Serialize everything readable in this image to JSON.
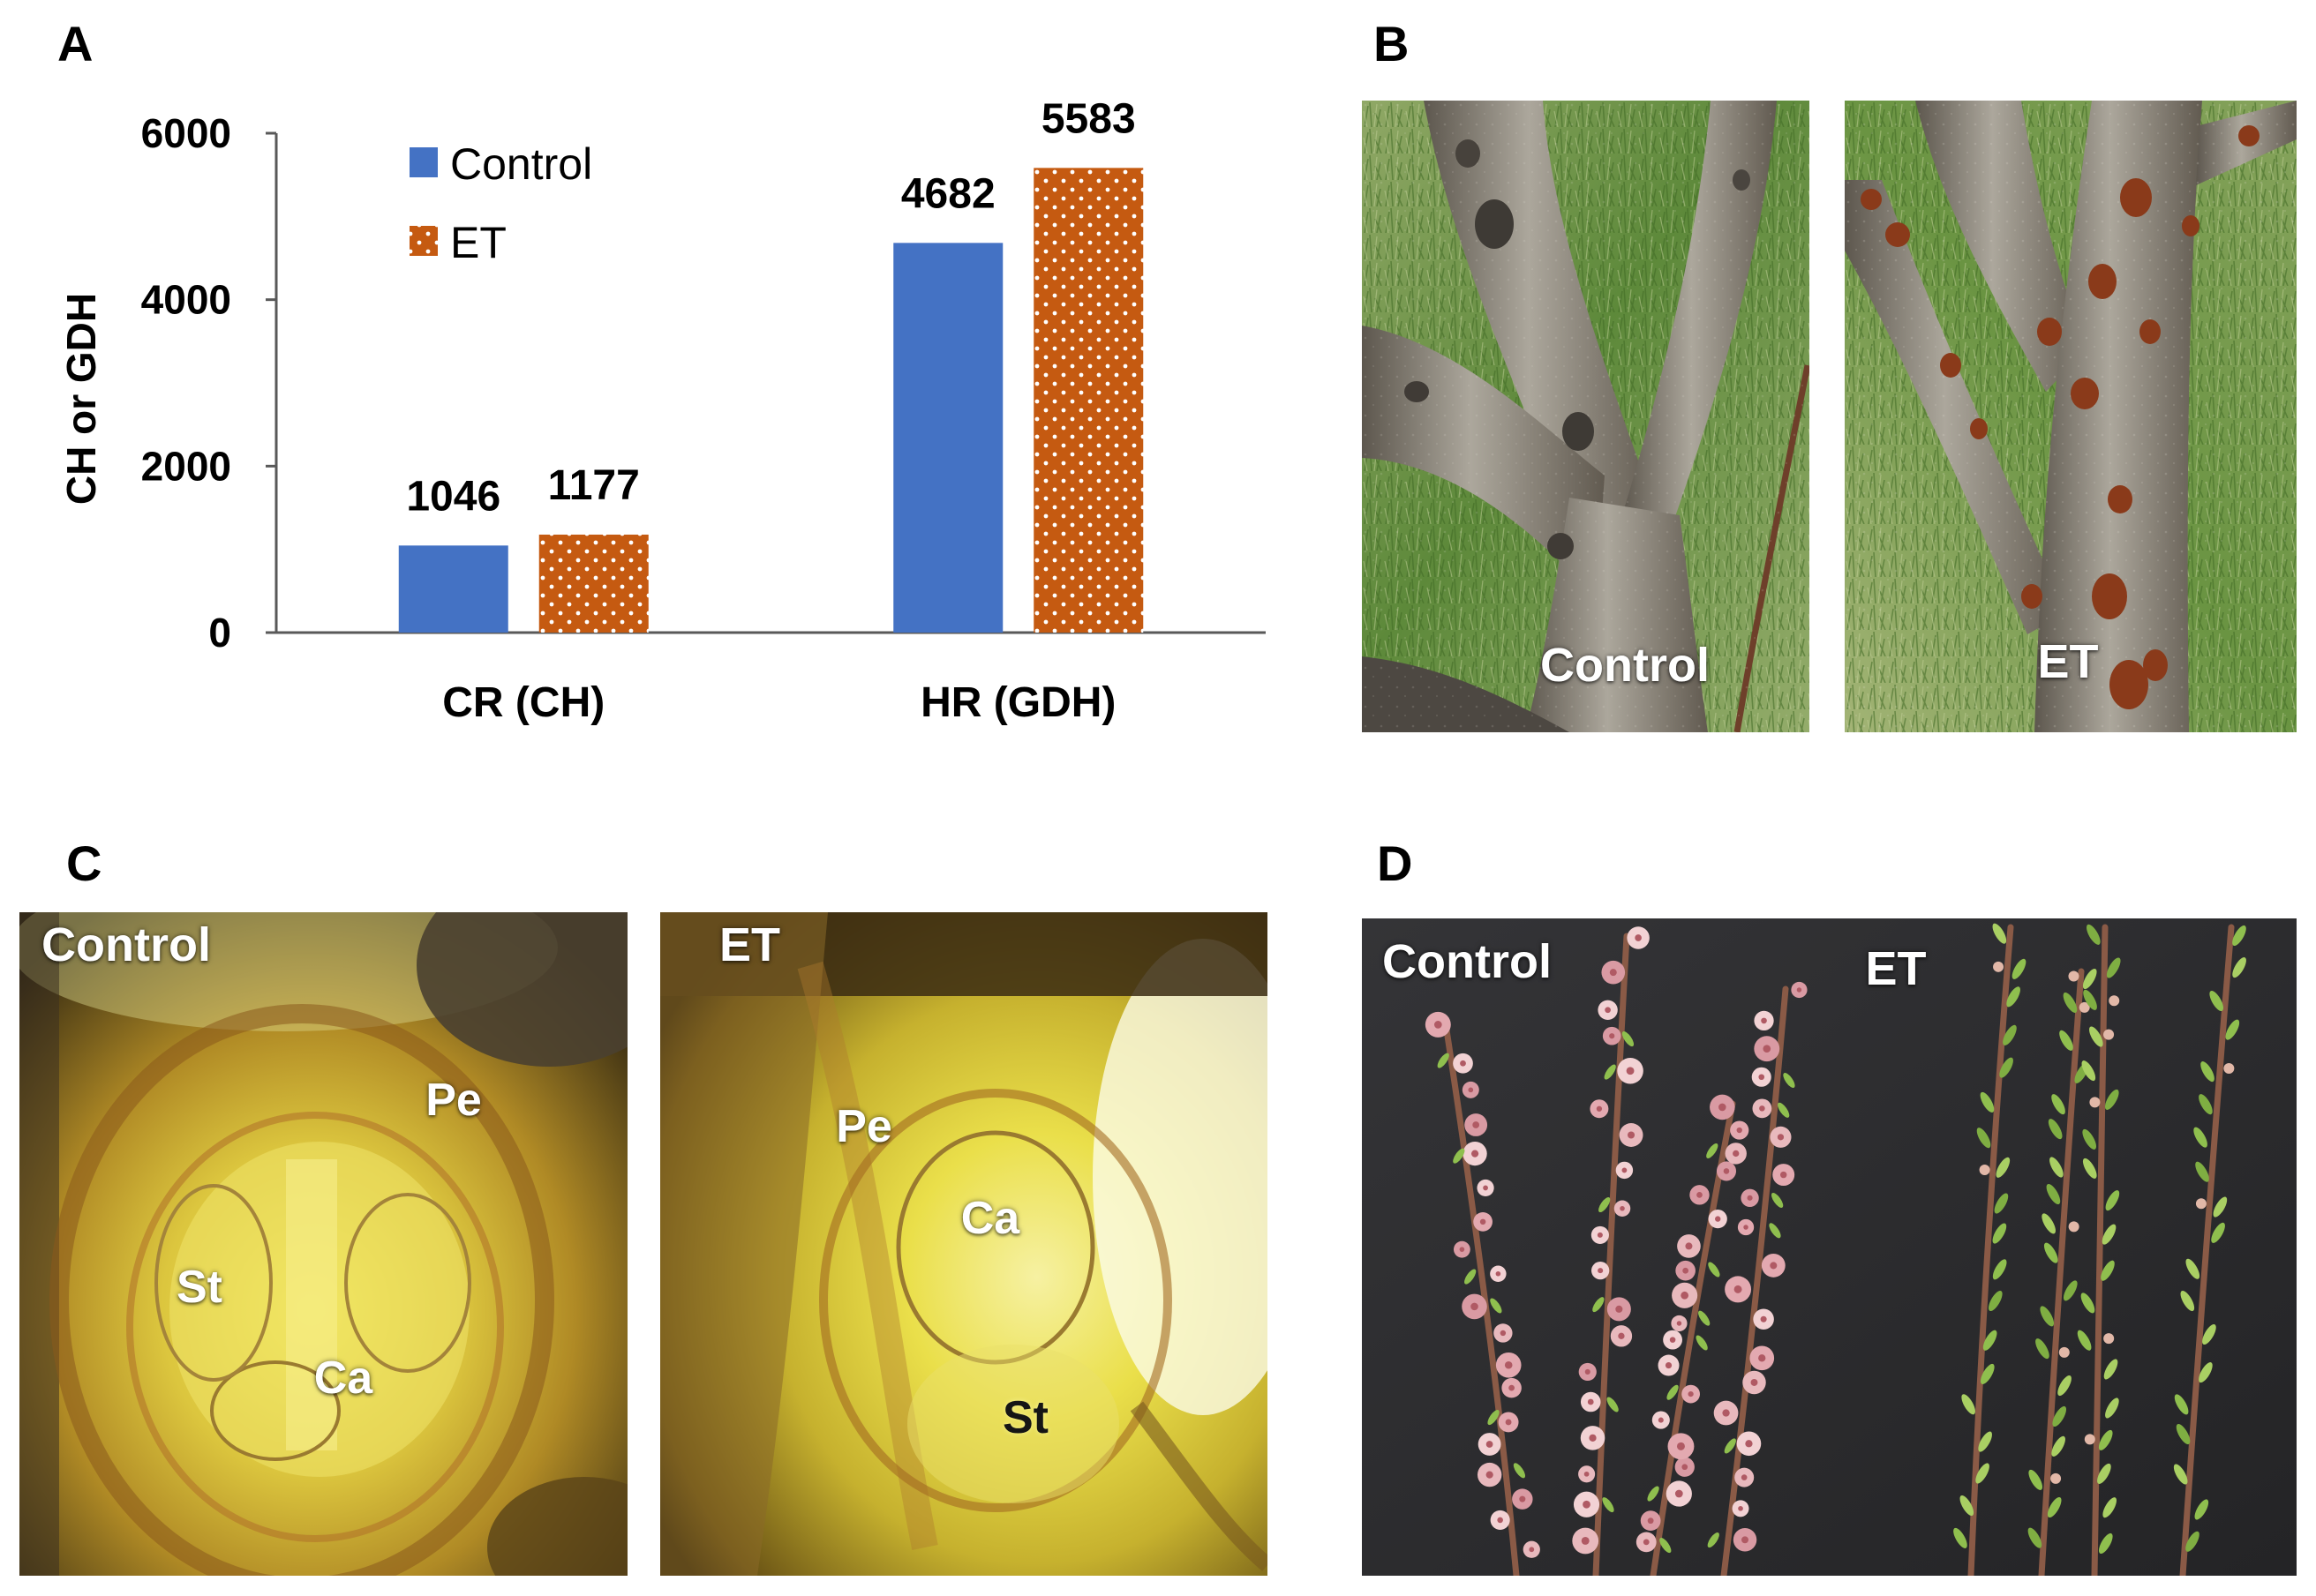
{
  "panel_labels": {
    "a": "A",
    "b": "B",
    "c": "C",
    "d": "D"
  },
  "chart_data": {
    "type": "bar",
    "categories": [
      "CR (CH)",
      "HR (GDH)"
    ],
    "series": [
      {
        "name": "Control",
        "values": [
          1046,
          4682
        ],
        "color": "#4472C4"
      },
      {
        "name": "ET",
        "values": [
          1177,
          5583
        ],
        "color": "#C55A11",
        "dot_color": "#FFFFFF"
      }
    ],
    "ylabel": "CH or GDH",
    "ylim": [
      0,
      6000
    ],
    "yticks": [
      6000,
      4000,
      2000,
      0
    ],
    "grid": false,
    "legend": "top-left",
    "axis_color": "#595959"
  },
  "panel_b": {
    "control_label": "Control",
    "et_label": "ET"
  },
  "panel_c": {
    "control": {
      "label": "Control",
      "pe": "Pe",
      "st": "St",
      "ca": "Ca"
    },
    "et": {
      "label": "ET",
      "pe": "Pe",
      "ca": "Ca",
      "st": "St"
    }
  },
  "panel_d": {
    "control_label": "Control",
    "et_label": "ET"
  }
}
